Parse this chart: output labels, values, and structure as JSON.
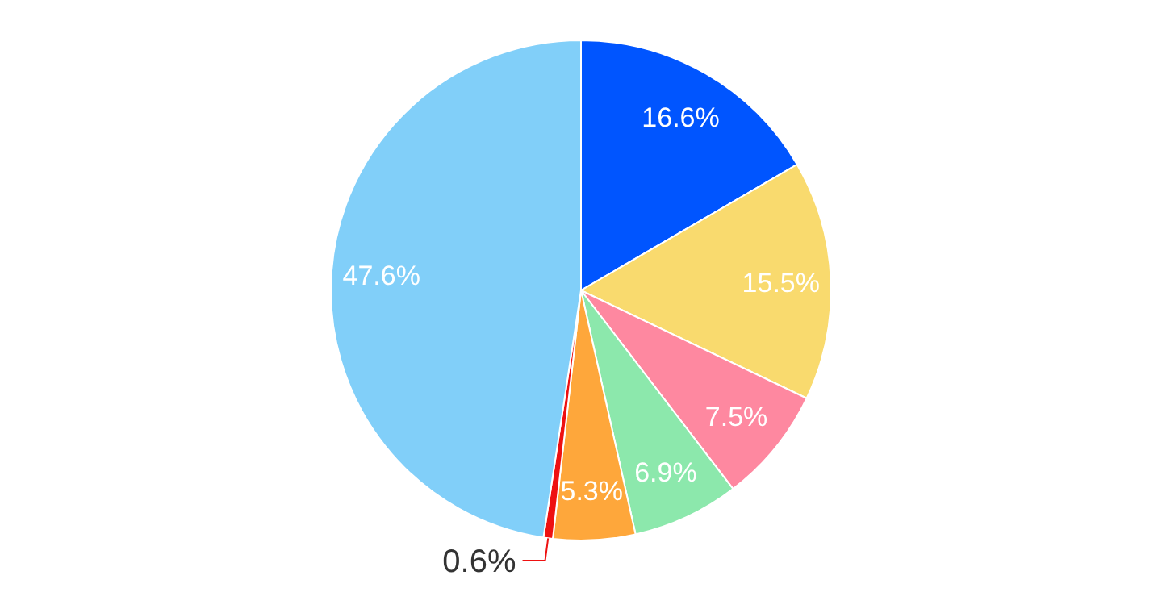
{
  "chart_data": {
    "type": "pie",
    "categories": [
      null,
      null,
      null,
      null,
      null,
      null,
      null
    ],
    "values": [
      16.6,
      15.5,
      7.5,
      6.9,
      5.3,
      0.6,
      47.6
    ],
    "colors": [
      "#0055ff",
      "#f9da6e",
      "#fe88a0",
      "#8ce8ac",
      "#fea73b",
      "#ee1111",
      "#81cff9"
    ],
    "value_labels": [
      "16.6%",
      "15.5%",
      "7.5%",
      "6.9%",
      "5.3%",
      "0.6%",
      "47.6%"
    ]
  }
}
